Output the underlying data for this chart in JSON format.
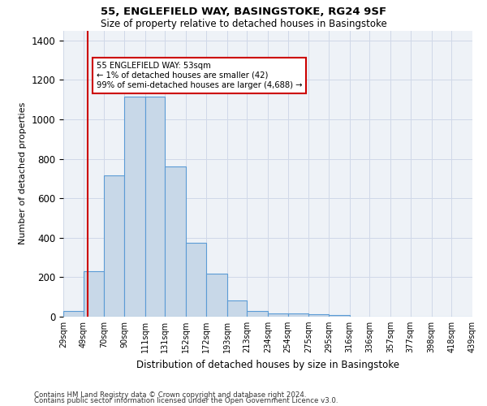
{
  "title1": "55, ENGLEFIELD WAY, BASINGSTOKE, RG24 9SF",
  "title2": "Size of property relative to detached houses in Basingstoke",
  "xlabel": "Distribution of detached houses by size in Basingstoke",
  "ylabel": "Number of detached properties",
  "bin_labels": [
    "29sqm",
    "49sqm",
    "70sqm",
    "90sqm",
    "111sqm",
    "131sqm",
    "152sqm",
    "172sqm",
    "193sqm",
    "213sqm",
    "234sqm",
    "254sqm",
    "275sqm",
    "295sqm",
    "316sqm",
    "336sqm",
    "357sqm",
    "377sqm",
    "398sqm",
    "418sqm",
    "439sqm"
  ],
  "bin_edges": [
    29,
    49,
    70,
    90,
    111,
    131,
    152,
    172,
    193,
    213,
    234,
    254,
    275,
    295,
    316,
    336,
    357,
    377,
    398,
    418,
    439
  ],
  "bar_heights": [
    28,
    232,
    717,
    1113,
    1113,
    761,
    375,
    218,
    82,
    28,
    18,
    18,
    12,
    8,
    0,
    0,
    0,
    0,
    0,
    0
  ],
  "bar_fill": "#c8d8e8",
  "bar_edge": "#5b9bd5",
  "vline_x": 53,
  "vline_color": "#cc0000",
  "annotation_line1": "55 ENGLEFIELD WAY: 53sqm",
  "annotation_line2": "← 1% of detached houses are smaller (42)",
  "annotation_line3": "99% of semi-detached houses are larger (4,688) →",
  "annotation_box_color": "#cc0000",
  "ylim": [
    0,
    1450
  ],
  "yticks": [
    0,
    200,
    400,
    600,
    800,
    1000,
    1200,
    1400
  ],
  "grid_color": "#d0d8e8",
  "footnote1": "Contains HM Land Registry data © Crown copyright and database right 2024.",
  "footnote2": "Contains public sector information licensed under the Open Government Licence v3.0.",
  "bg_color": "#eef2f7"
}
